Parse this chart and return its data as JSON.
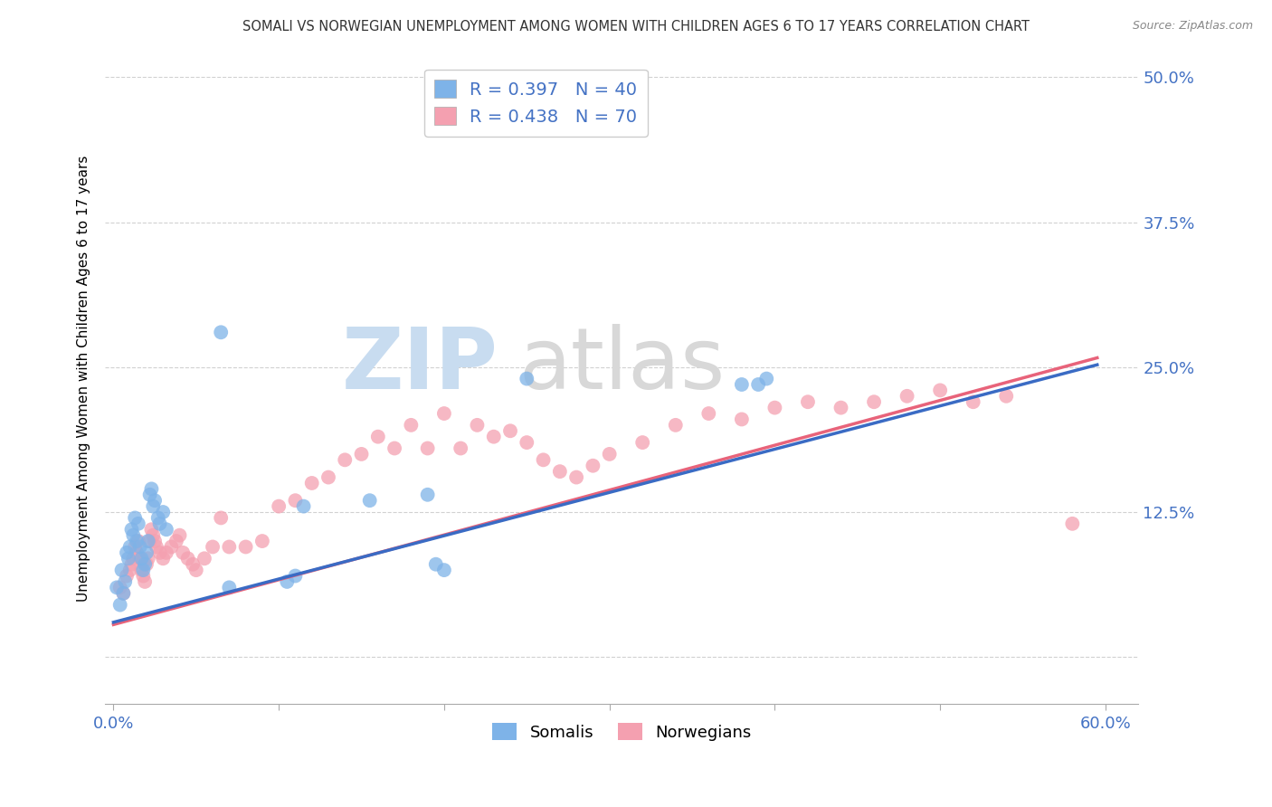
{
  "title": "SOMALI VS NORWEGIAN UNEMPLOYMENT AMONG WOMEN WITH CHILDREN AGES 6 TO 17 YEARS CORRELATION CHART",
  "source": "Source: ZipAtlas.com",
  "ylabel": "Unemployment Among Women with Children Ages 6 to 17 years",
  "xlim": [
    -0.005,
    0.62
  ],
  "ylim": [
    -0.04,
    0.52
  ],
  "somalis_R": 0.397,
  "somalis_N": 40,
  "norwegians_R": 0.438,
  "norwegians_N": 70,
  "somali_color": "#7EB3E8",
  "norwegian_color": "#F4A0B0",
  "somali_line_color": "#3A6BC4",
  "norwegian_line_color": "#E8637A",
  "somali_x": [
    0.002,
    0.004,
    0.005,
    0.006,
    0.007,
    0.008,
    0.009,
    0.01,
    0.011,
    0.012,
    0.013,
    0.014,
    0.015,
    0.016,
    0.017,
    0.018,
    0.019,
    0.02,
    0.021,
    0.022,
    0.023,
    0.024,
    0.025,
    0.027,
    0.028,
    0.03,
    0.032,
    0.065,
    0.07,
    0.105,
    0.11,
    0.115,
    0.155,
    0.19,
    0.195,
    0.2,
    0.25,
    0.38,
    0.39,
    0.395
  ],
  "somali_y": [
    0.06,
    0.045,
    0.075,
    0.055,
    0.065,
    0.09,
    0.085,
    0.095,
    0.11,
    0.105,
    0.12,
    0.1,
    0.115,
    0.095,
    0.085,
    0.075,
    0.08,
    0.09,
    0.1,
    0.14,
    0.145,
    0.13,
    0.135,
    0.12,
    0.115,
    0.125,
    0.11,
    0.28,
    0.06,
    0.065,
    0.07,
    0.13,
    0.135,
    0.14,
    0.08,
    0.075,
    0.24,
    0.235,
    0.235,
    0.24
  ],
  "norwegian_x": [
    0.004,
    0.006,
    0.008,
    0.01,
    0.011,
    0.012,
    0.013,
    0.014,
    0.015,
    0.016,
    0.017,
    0.018,
    0.019,
    0.02,
    0.021,
    0.022,
    0.023,
    0.024,
    0.025,
    0.026,
    0.028,
    0.03,
    0.032,
    0.035,
    0.038,
    0.04,
    0.042,
    0.045,
    0.048,
    0.05,
    0.055,
    0.06,
    0.065,
    0.07,
    0.08,
    0.09,
    0.1,
    0.11,
    0.12,
    0.13,
    0.14,
    0.15,
    0.16,
    0.17,
    0.18,
    0.19,
    0.2,
    0.21,
    0.22,
    0.23,
    0.24,
    0.25,
    0.26,
    0.27,
    0.28,
    0.29,
    0.3,
    0.32,
    0.34,
    0.36,
    0.38,
    0.4,
    0.42,
    0.44,
    0.46,
    0.48,
    0.5,
    0.52,
    0.54,
    0.58
  ],
  "norwegian_y": [
    0.06,
    0.055,
    0.07,
    0.075,
    0.08,
    0.085,
    0.095,
    0.09,
    0.1,
    0.085,
    0.075,
    0.07,
    0.065,
    0.08,
    0.085,
    0.1,
    0.11,
    0.105,
    0.1,
    0.095,
    0.09,
    0.085,
    0.09,
    0.095,
    0.1,
    0.105,
    0.09,
    0.085,
    0.08,
    0.075,
    0.085,
    0.095,
    0.12,
    0.095,
    0.095,
    0.1,
    0.13,
    0.135,
    0.15,
    0.155,
    0.17,
    0.175,
    0.19,
    0.18,
    0.2,
    0.18,
    0.21,
    0.18,
    0.2,
    0.19,
    0.195,
    0.185,
    0.17,
    0.16,
    0.155,
    0.165,
    0.175,
    0.185,
    0.2,
    0.21,
    0.205,
    0.215,
    0.22,
    0.215,
    0.22,
    0.225,
    0.23,
    0.22,
    0.225,
    0.115
  ],
  "line_x_start": 0.0,
  "line_x_end": 0.595,
  "somali_line_y_start": 0.03,
  "somali_line_y_end": 0.252,
  "norwegian_line_y_start": 0.028,
  "norwegian_line_y_end": 0.258
}
